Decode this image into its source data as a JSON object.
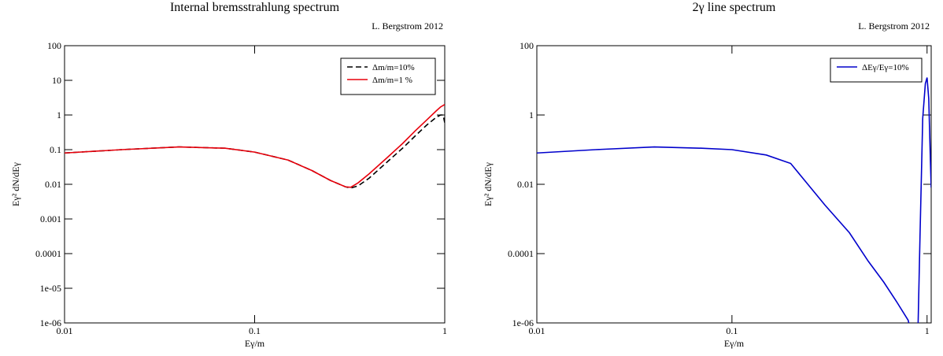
{
  "chart_data": [
    {
      "type": "line",
      "title": "Internal bremsstrahlung spectrum",
      "annotation": "L. Bergstrom 2012",
      "xlabel": "Eγ/m",
      "ylabel": "Eγ² dN/dEγ",
      "xscale": "log",
      "yscale": "log",
      "xlim": [
        0.01,
        1
      ],
      "ylim": [
        1e-06,
        100
      ],
      "xticks": [
        0.01,
        0.1,
        1
      ],
      "yticks": [
        {
          "value": 1e-06,
          "label": "1e-06"
        },
        {
          "value": 1e-05,
          "label": "1e-05"
        },
        0.0001,
        0.001,
        0.01,
        0.1,
        1,
        10,
        100
      ],
      "legend": "upper right",
      "series": [
        {
          "name": "Δm/m=10%",
          "color": "#000000",
          "linestyle": "dashed",
          "x": [
            0.01,
            0.02,
            0.04,
            0.07,
            0.1,
            0.15,
            0.2,
            0.25,
            0.3,
            0.32,
            0.35,
            0.4,
            0.5,
            0.6,
            0.7,
            0.8,
            0.9,
            0.95,
            0.98,
            1.0
          ],
          "values": [
            0.08,
            0.1,
            0.12,
            0.11,
            0.085,
            0.05,
            0.025,
            0.013,
            0.0085,
            0.0078,
            0.009,
            0.015,
            0.045,
            0.11,
            0.25,
            0.5,
            0.85,
            1.0,
            1.0,
            0.6
          ]
        },
        {
          "name": "Δm/m=1 %",
          "color": "#e8000b",
          "linestyle": "solid",
          "x": [
            0.01,
            0.02,
            0.04,
            0.07,
            0.1,
            0.15,
            0.2,
            0.25,
            0.3,
            0.32,
            0.35,
            0.4,
            0.5,
            0.6,
            0.7,
            0.8,
            0.9,
            0.95,
            1.0
          ],
          "values": [
            0.08,
            0.1,
            0.12,
            0.11,
            0.085,
            0.05,
            0.025,
            0.013,
            0.0085,
            0.0082,
            0.011,
            0.02,
            0.06,
            0.15,
            0.35,
            0.7,
            1.3,
            1.7,
            2.0
          ]
        }
      ]
    },
    {
      "type": "line",
      "title": "2γ line spectrum",
      "annotation": "L. Bergstrom 2012",
      "xlabel": "Eγ/m",
      "ylabel": "Eγ² dN/dEγ",
      "xscale": "log",
      "yscale": "log",
      "xlim": [
        0.01,
        1.05
      ],
      "ylim": [
        1e-06,
        100
      ],
      "xticks": [
        0.01,
        0.1,
        1
      ],
      "yticks": [
        {
          "value": 1e-06,
          "label": "1e-06"
        },
        0.0001,
        0.01,
        1,
        100
      ],
      "legend": "upper right",
      "series": [
        {
          "name": "ΔEγ/Eγ=10%",
          "color": "#0000cc",
          "linestyle": "solid",
          "x": [
            0.01,
            0.02,
            0.04,
            0.07,
            0.1,
            0.15,
            0.2,
            0.3,
            0.4,
            0.5,
            0.6,
            0.7,
            0.8,
            0.85,
            0.9,
            0.92,
            0.95,
            0.98,
            1.0,
            1.02,
            1.04,
            1.05
          ],
          "values": [
            0.08,
            0.1,
            0.12,
            0.11,
            0.1,
            0.07,
            0.04,
            0.0025,
            0.0004,
            6e-05,
            1.5e-05,
            4e-06,
            1.2e-06,
            3e-07,
            1e-06,
            0.0003,
            0.8,
            8,
            12,
            3,
            0.05,
            0.008
          ]
        }
      ]
    }
  ]
}
